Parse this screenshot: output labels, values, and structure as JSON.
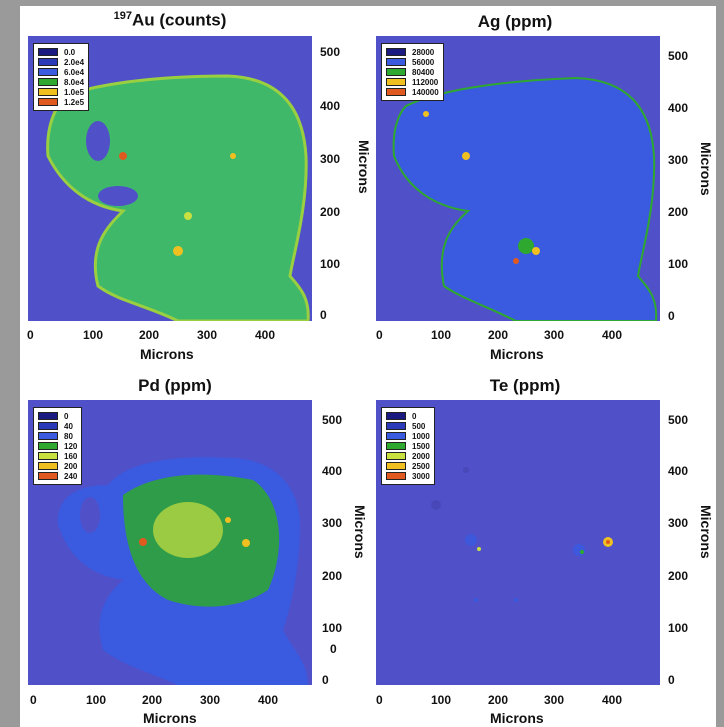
{
  "chart_data": [
    {
      "type": "heatmap",
      "title_sup": "197",
      "title": "Au (counts)",
      "xlabel": "Microns",
      "ylabel": "Microns",
      "xticks": [
        "0",
        "100",
        "200",
        "300",
        "400"
      ],
      "yticks": [
        "500",
        "400",
        "300",
        "200",
        "100",
        "0"
      ],
      "legend": [
        {
          "label": "0.0",
          "color": "#1a1a80"
        },
        {
          "label": "2.0e4",
          "color": "#2a3ab8"
        },
        {
          "label": "6.0e4",
          "color": "#3a5ae0"
        },
        {
          "label": "8.0e4",
          "color": "#2ea82e"
        },
        {
          "label": "1.0e5",
          "color": "#f0c020"
        },
        {
          "label": "1.2e5",
          "color": "#e05a20"
        }
      ]
    },
    {
      "type": "heatmap",
      "title": "Ag (ppm)",
      "xlabel": "Microns",
      "ylabel": "Microns",
      "xticks": [
        "0",
        "100",
        "200",
        "300",
        "400"
      ],
      "yticks": [
        "500",
        "400",
        "300",
        "200",
        "100",
        "0"
      ],
      "legend": [
        {
          "label": "28000",
          "color": "#1a1a80"
        },
        {
          "label": "56000",
          "color": "#3a5ae0"
        },
        {
          "label": "80400",
          "color": "#2ea82e"
        },
        {
          "label": "112000",
          "color": "#f0c020"
        },
        {
          "label": "140000",
          "color": "#e05a20"
        }
      ]
    },
    {
      "type": "heatmap",
      "title": "Pd (ppm)",
      "xlabel": "Microns",
      "ylabel": "Microns",
      "xticks": [
        "0",
        "100",
        "200",
        "300",
        "400"
      ],
      "yticks": [
        "500",
        "400",
        "300",
        "200",
        "100",
        "0",
        "0"
      ],
      "legend": [
        {
          "label": "0",
          "color": "#1a1a80"
        },
        {
          "label": "40",
          "color": "#2a3ab8"
        },
        {
          "label": "80",
          "color": "#3a5ae0"
        },
        {
          "label": "120",
          "color": "#2ea82e"
        },
        {
          "label": "160",
          "color": "#c8e040"
        },
        {
          "label": "200",
          "color": "#f0c020"
        },
        {
          "label": "240",
          "color": "#e05a20"
        }
      ]
    },
    {
      "type": "heatmap",
      "title": "Te (ppm)",
      "xlabel": "Microns",
      "ylabel": "Microns",
      "xticks": [
        "0",
        "100",
        "200",
        "300",
        "400"
      ],
      "yticks": [
        "500",
        "400",
        "300",
        "200",
        "100",
        "0"
      ],
      "legend": [
        {
          "label": "0",
          "color": "#1a1a80"
        },
        {
          "label": "500",
          "color": "#2a3ab8"
        },
        {
          "label": "1000",
          "color": "#3a5ae0"
        },
        {
          "label": "1500",
          "color": "#2ea82e"
        },
        {
          "label": "2000",
          "color": "#c8e040"
        },
        {
          "label": "2500",
          "color": "#f0c020"
        },
        {
          "label": "3000",
          "color": "#e05a20"
        }
      ]
    }
  ]
}
